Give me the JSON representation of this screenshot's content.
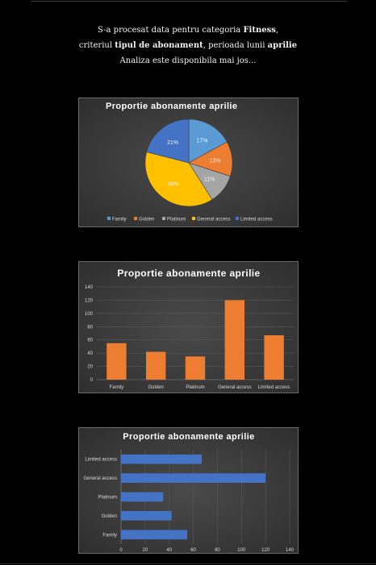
{
  "intro": {
    "line1_prefix": "S-a procesat data pentru categoria ",
    "line1_category": "Fitness",
    "line1_suffix": ",",
    "line2_prefix": "criteriul ",
    "line2_criterion": "tipul de abonament",
    "line2_middle": ", perioada lunii ",
    "line2_period": "aprilie",
    "line3": "Analiza este disponibila mai jos..."
  },
  "chart_data": [
    {
      "type": "pie",
      "title": "Proportie abonamente aprilie",
      "categories": [
        "Family",
        "Golden",
        "Platinum",
        "General access",
        "Limited access"
      ],
      "values": [
        17,
        13,
        11,
        38,
        21
      ],
      "value_labels": [
        "17%",
        "13%",
        "11%",
        "38%",
        "21%"
      ],
      "colors": [
        "#5b9bd5",
        "#ed7d31",
        "#a5a5a5",
        "#ffc000",
        "#4472c4"
      ],
      "legend": "bottom"
    },
    {
      "type": "bar",
      "orientation": "vertical",
      "title": "Proportie abonamente aprilie",
      "categories": [
        "Family",
        "Golden",
        "Platinum",
        "General access",
        "Limited access"
      ],
      "values": [
        55,
        42,
        35,
        120,
        67
      ],
      "ylim": [
        0,
        140
      ],
      "yticks": [
        0,
        20,
        40,
        60,
        80,
        100,
        120,
        140
      ],
      "grid": true,
      "color": "#ed7d31"
    },
    {
      "type": "bar",
      "orientation": "horizontal",
      "title": "Proportie abonamente aprilie",
      "categories": [
        "Family",
        "Golden",
        "Platinum",
        "General access",
        "Limited access"
      ],
      "values": [
        55,
        42,
        35,
        120,
        67
      ],
      "xlim": [
        0,
        140
      ],
      "xticks": [
        0,
        20,
        40,
        60,
        80,
        100,
        120,
        140
      ],
      "grid": true,
      "color": "#4472c4"
    }
  ]
}
